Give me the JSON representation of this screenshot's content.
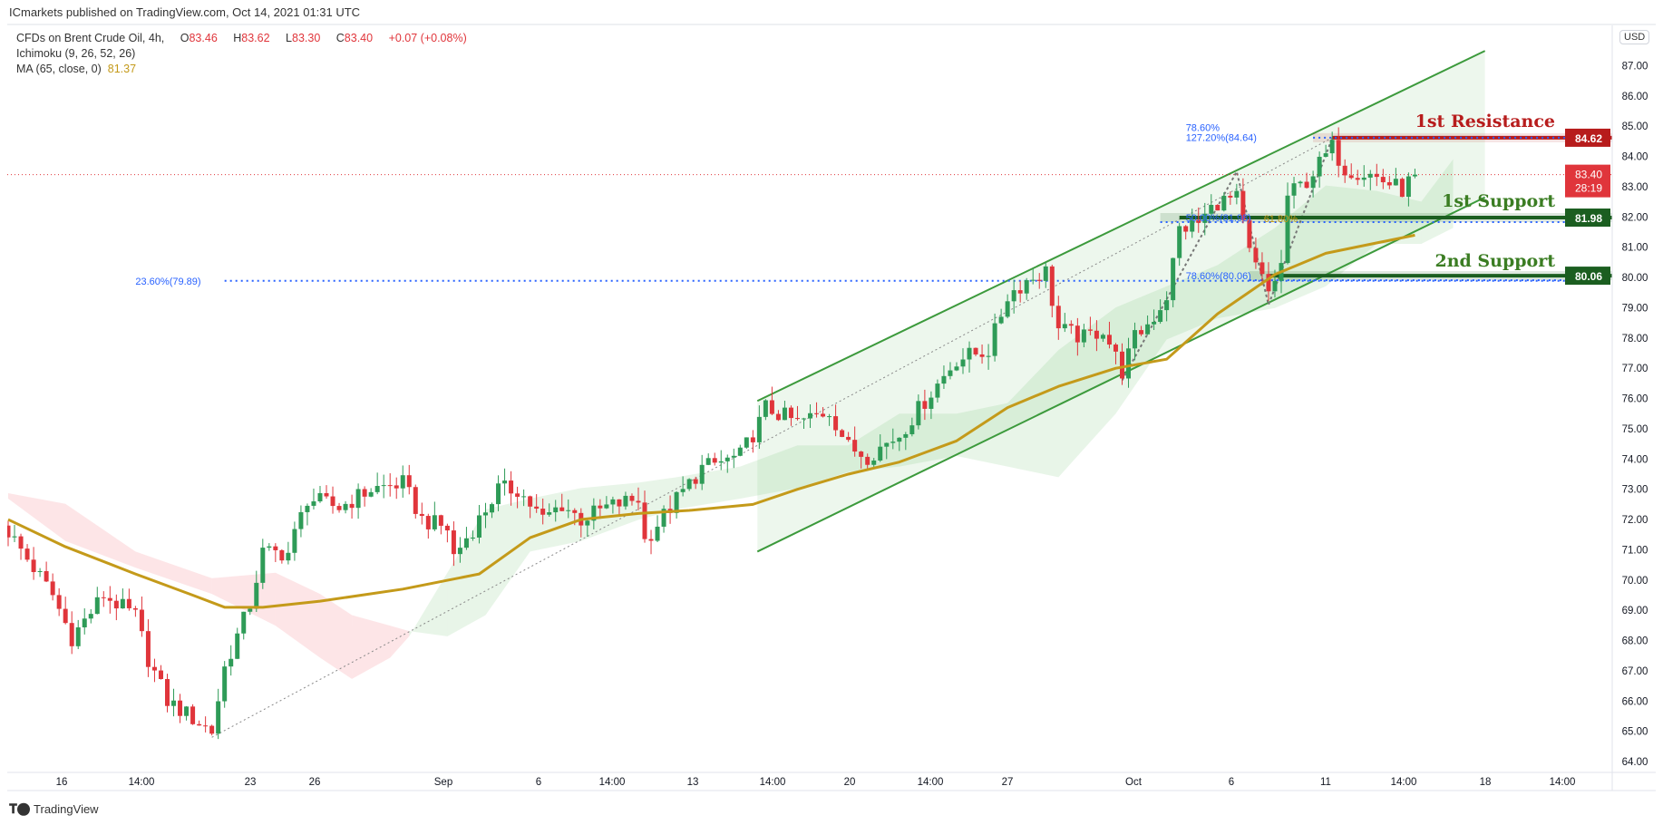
{
  "header": {
    "published": "ICmarkets published on TradingView.com, Oct 14, 2021 01:31 UTC"
  },
  "legend": {
    "symbol": "CFDs on Brent Crude Oil, 4h,",
    "open_label": "O",
    "open": "83.46",
    "high_label": "H",
    "high": "83.62",
    "low_label": "L",
    "low": "83.30",
    "close_label": "C",
    "close": "83.40",
    "change": "+0.07 (+0.08%)",
    "ichimoku": "Ichimoku (9, 26, 52, 26)",
    "ma": "MA (65, close, 0)",
    "ma_value": "81.37"
  },
  "currency": "USD",
  "branding": "TradingView",
  "colors": {
    "up": "#2e9b57",
    "down": "#e0353b",
    "channel": "#3c9a3c",
    "ma": "#c49a1a",
    "fib": "#2962ff",
    "resistance": "#b71c1c",
    "support": "#1b5e20"
  },
  "chart_data": {
    "type": "candlestick",
    "title": "CFDs on Brent Crude Oil, 4h",
    "ylabel": "USD",
    "ylim": [
      64,
      87.5
    ],
    "y_ticks": [
      "64.00",
      "65.00",
      "66.00",
      "67.00",
      "68.00",
      "69.00",
      "70.00",
      "71.00",
      "72.00",
      "73.00",
      "74.00",
      "75.00",
      "76.00",
      "77.00",
      "78.00",
      "79.00",
      "80.00",
      "81.00",
      "82.00",
      "83.00",
      "84.00",
      "85.00",
      "86.00",
      "87.00"
    ],
    "x_ticks": [
      "16",
      "14:00",
      "23",
      "26",
      "Sep",
      "6",
      "14:00",
      "13",
      "14:00",
      "20",
      "14:00",
      "27",
      "Oct",
      "6",
      "11",
      "14:00",
      "18",
      "14:00"
    ],
    "price_path_bar_index_price": [
      [
        0,
        71.6
      ],
      [
        7,
        69.5
      ],
      [
        10,
        68.1
      ],
      [
        15,
        69.5
      ],
      [
        20,
        68.8
      ],
      [
        22,
        67.4
      ],
      [
        25,
        66.0
      ],
      [
        32,
        65.0
      ],
      [
        34,
        67.1
      ],
      [
        38,
        69.2
      ],
      [
        40,
        70.9
      ],
      [
        44,
        70.9
      ],
      [
        47,
        72.7
      ],
      [
        52,
        72.4
      ],
      [
        57,
        73.0
      ],
      [
        62,
        73.2
      ],
      [
        65,
        72.0
      ],
      [
        69,
        71.7
      ],
      [
        70,
        70.8
      ],
      [
        74,
        72.0
      ],
      [
        77,
        73.0
      ],
      [
        80,
        73.0
      ],
      [
        84,
        72.0
      ],
      [
        87,
        72.5
      ],
      [
        90,
        72.0
      ],
      [
        94,
        72.4
      ],
      [
        99,
        72.7
      ],
      [
        100,
        71.3
      ],
      [
        104,
        72.4
      ],
      [
        109,
        73.7
      ],
      [
        115,
        74.1
      ],
      [
        118,
        75.2
      ],
      [
        119,
        75.7
      ],
      [
        124,
        75.2
      ],
      [
        129,
        75.6
      ],
      [
        132,
        74.4
      ],
      [
        135,
        74.1
      ],
      [
        140,
        74.8
      ],
      [
        145,
        76.2
      ],
      [
        149,
        77.3
      ],
      [
        154,
        77.6
      ],
      [
        157,
        79.4
      ],
      [
        160,
        79.9
      ],
      [
        163,
        80.2
      ],
      [
        165,
        78.3
      ],
      [
        169,
        78.0
      ],
      [
        172,
        78.3
      ],
      [
        175,
        76.9
      ],
      [
        177,
        78.0
      ],
      [
        180,
        78.7
      ],
      [
        182,
        79.4
      ],
      [
        184,
        81.6
      ],
      [
        187,
        81.8
      ],
      [
        190,
        82.5
      ],
      [
        193,
        82.6
      ],
      [
        195,
        80.8
      ],
      [
        198,
        79.5
      ],
      [
        200,
        80.4
      ],
      [
        201,
        82.7
      ],
      [
        204,
        83.2
      ],
      [
        208,
        84.3
      ],
      [
        210,
        83.6
      ],
      [
        214,
        83.4
      ],
      [
        216,
        83.2
      ],
      [
        219,
        82.9
      ],
      [
        221,
        83.4
      ]
    ],
    "ma65_bar_index_price": [
      [
        0,
        72.0
      ],
      [
        9,
        71.1
      ],
      [
        20,
        70.2
      ],
      [
        29,
        69.5
      ],
      [
        34,
        69.1
      ],
      [
        40,
        69.1
      ],
      [
        49,
        69.3
      ],
      [
        62,
        69.7
      ],
      [
        74,
        70.2
      ],
      [
        82,
        71.4
      ],
      [
        90,
        72.0
      ],
      [
        99,
        72.2
      ],
      [
        107,
        72.3
      ],
      [
        117,
        72.5
      ],
      [
        124,
        73.0
      ],
      [
        132,
        73.5
      ],
      [
        140,
        73.9
      ],
      [
        149,
        74.6
      ],
      [
        157,
        75.7
      ],
      [
        165,
        76.4
      ],
      [
        174,
        77.0
      ],
      [
        182,
        77.3
      ],
      [
        190,
        78.8
      ],
      [
        199,
        80.1
      ],
      [
        207,
        80.8
      ],
      [
        221,
        81.4
      ]
    ],
    "cloud_bar_index_spanA_spanB": [
      [
        0,
        72.69,
        72.87
      ],
      [
        9,
        71.29,
        72.52
      ],
      [
        20,
        70.41,
        70.94
      ],
      [
        32,
        69.54,
        70.06
      ],
      [
        42,
        68.49,
        70.24
      ],
      [
        49,
        67.43,
        69.54
      ],
      [
        54,
        66.73,
        68.84
      ],
      [
        60,
        67.43,
        68.49
      ],
      [
        63,
        68.14,
        68.31
      ],
      [
        69,
        70.24,
        68.14
      ],
      [
        75,
        72.34,
        68.84
      ],
      [
        82,
        72.69,
        70.94
      ],
      [
        90,
        73.04,
        71.29
      ],
      [
        99,
        73.22,
        71.99
      ],
      [
        105,
        73.4,
        72.34
      ],
      [
        115,
        73.75,
        72.69
      ],
      [
        124,
        74.45,
        73.04
      ],
      [
        132,
        74.45,
        73.57
      ],
      [
        140,
        75.5,
        73.75
      ],
      [
        149,
        75.5,
        74.1
      ],
      [
        157,
        75.85,
        73.75
      ],
      [
        165,
        77.6,
        73.4
      ],
      [
        174,
        79.01,
        75.5
      ],
      [
        182,
        79.71,
        77.95
      ],
      [
        190,
        80.41,
        78.65
      ],
      [
        199,
        81.64,
        78.99
      ],
      [
        207,
        83.04,
        79.71
      ],
      [
        215,
        82.86,
        81.11
      ],
      [
        222,
        82.51,
        81.11
      ],
      [
        227,
        83.91,
        81.64
      ]
    ],
    "channel": {
      "upper": [
        [
          117.7,
          75.92
        ],
        [
          232,
          87.49
        ]
      ],
      "lower": [
        [
          117.7,
          70.94
        ],
        [
          232,
          82.65
        ]
      ]
    },
    "levels": [
      {
        "name": "1st Resistance",
        "price": 84.62,
        "label": "84.62",
        "from_index": 208
      },
      {
        "name": "1st Support",
        "price": 81.98,
        "label": "81.98",
        "from_index": 184
      },
      {
        "name": "2nd Support",
        "price": 80.06,
        "label": "80.06",
        "from_index": 198
      }
    ],
    "fib_labels": [
      {
        "text": "127.20%(84.64)",
        "price": 84.64,
        "from_index": 185
      },
      {
        "text": "78.60%",
        "price": 84.55,
        "from_index": 190
      },
      {
        "text": "50.00%(81.98)",
        "price": 81.98,
        "from_index": 185
      },
      {
        "text": "61.80%",
        "price": 81.95,
        "from_index": 190
      },
      {
        "text": "78.60%(80.06)",
        "price": 80.06,
        "from_index": 185
      },
      {
        "text": "23.60%(79.89)",
        "price": 79.89,
        "from_index": 20
      }
    ],
    "last_price": {
      "price": 83.4,
      "label": "83.40",
      "countdown": "28:19"
    }
  }
}
